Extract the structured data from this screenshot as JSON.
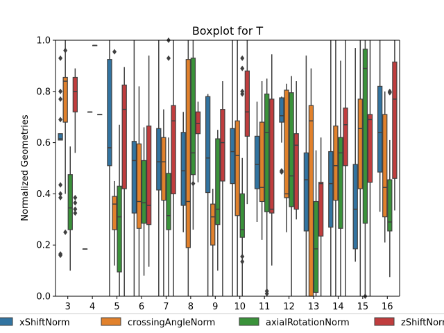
{
  "chart_data": {
    "type": "boxplot",
    "title": "Boxplot for T",
    "xlabel": "",
    "ylabel": "Normalized Geometries",
    "ylim": [
      0.0,
      1.0
    ],
    "yticks": [
      "0.0",
      "0.2",
      "0.4",
      "0.6",
      "0.8",
      "1.0"
    ],
    "categories": [
      "3",
      "4",
      "5",
      "6",
      "7",
      "8",
      "9",
      "10",
      "11",
      "12",
      "13",
      "14",
      "15",
      "16"
    ],
    "legend_position": "bottom",
    "series": [
      {
        "name": "xShiftNorm",
        "color": "#3274a1",
        "boxes": [
          {
            "q1": 0.61,
            "median": 0.615,
            "q3": 0.635,
            "wlo": 0.61,
            "whi": 0.635,
            "outliers": [
              0.93,
              0.8,
              0.77,
              0.69,
              0.435,
              0.4,
              0.385,
              0.165,
              0.16
            ]
          },
          {
            "q1": 0.185,
            "median": 0.185,
            "q3": 0.185,
            "wlo": 0.185,
            "whi": 0.185,
            "outliers": []
          },
          {
            "q1": 0.51,
            "median": 0.58,
            "q3": 0.925,
            "wlo": 0.0,
            "whi": 1.0,
            "outliers": []
          },
          {
            "q1": 0.325,
            "median": 0.53,
            "q3": 0.605,
            "wlo": 0.0,
            "whi": 1.0,
            "outliers": []
          },
          {
            "q1": 0.415,
            "median": 0.525,
            "q3": 0.655,
            "wlo": 0.0,
            "whi": 1.0,
            "outliers": []
          },
          {
            "q1": 0.355,
            "median": 0.49,
            "q3": 0.64,
            "wlo": 0.25,
            "whi": 0.72,
            "outliers": []
          },
          {
            "q1": 0.405,
            "median": 0.54,
            "q3": 0.78,
            "wlo": 0.0,
            "whi": 0.79,
            "outliers": []
          },
          {
            "q1": 0.44,
            "median": 0.565,
            "q3": 0.655,
            "wlo": 0.0,
            "whi": 1.0,
            "outliers": []
          },
          {
            "q1": 0.42,
            "median": 0.515,
            "q3": 0.625,
            "wlo": 0.29,
            "whi": 0.76,
            "outliers": []
          },
          {
            "q1": 0.68,
            "median": 0.705,
            "q3": 0.775,
            "wlo": 0.6,
            "whi": 0.78,
            "outliers": [
              0.49,
              0.485
            ]
          },
          {
            "q1": 0.255,
            "median": 0.455,
            "q3": 0.56,
            "wlo": 0.0,
            "whi": 0.94,
            "outliers": []
          },
          {
            "q1": 0.27,
            "median": 0.44,
            "q3": 0.565,
            "wlo": 0.0,
            "whi": 1.0,
            "outliers": []
          },
          {
            "q1": 0.185,
            "median": 0.34,
            "q3": 0.515,
            "wlo": 0.135,
            "whi": 0.97,
            "outliers": []
          },
          {
            "q1": 0.485,
            "median": 0.64,
            "q3": 0.82,
            "wlo": 0.33,
            "whi": 1.0,
            "outliers": []
          }
        ]
      },
      {
        "name": "crossingAngleNorm",
        "color": "#e1812c",
        "boxes": [
          {
            "q1": 0.68,
            "median": 0.84,
            "q3": 0.855,
            "wlo": 0.4,
            "whi": 1.0,
            "outliers": [
              0.96,
              0.25
            ]
          },
          {
            "q1": 0.72,
            "median": 0.72,
            "q3": 0.72,
            "wlo": 0.72,
            "whi": 0.72,
            "outliers": []
          },
          {
            "q1": 0.26,
            "median": 0.36,
            "q3": 0.39,
            "wlo": 0.12,
            "whi": 0.45,
            "outliers": [
              0.955
            ]
          },
          {
            "q1": 0.265,
            "median": 0.37,
            "q3": 0.595,
            "wlo": 0.0,
            "whi": 0.82,
            "outliers": []
          },
          {
            "q1": 0.375,
            "median": 0.525,
            "q3": 0.62,
            "wlo": 0.0,
            "whi": 0.73,
            "outliers": []
          },
          {
            "q1": 0.19,
            "median": 0.37,
            "q3": 0.925,
            "wlo": 0.0,
            "whi": 1.0,
            "outliers": []
          },
          {
            "q1": 0.2,
            "median": 0.31,
            "q3": 0.36,
            "wlo": 0.0,
            "whi": 0.42,
            "outliers": []
          },
          {
            "q1": 0.315,
            "median": 0.55,
            "q3": 0.685,
            "wlo": 0.0,
            "whi": 1.0,
            "outliers": []
          },
          {
            "q1": 0.37,
            "median": 0.425,
            "q3": 0.68,
            "wlo": 0.22,
            "whi": 0.84,
            "outliers": []
          },
          {
            "q1": 0.385,
            "median": 0.4,
            "q3": 0.805,
            "wlo": 0.25,
            "whi": 0.83,
            "outliers": []
          },
          {
            "q1": 0.0,
            "median": 0.685,
            "q3": 0.745,
            "wlo": 0.0,
            "whi": 0.89,
            "outliers": []
          },
          {
            "q1": 0.375,
            "median": 0.51,
            "q3": 0.665,
            "wlo": 0.0,
            "whi": 1.0,
            "outliers": []
          },
          {
            "q1": 0.42,
            "median": 0.655,
            "q3": 0.77,
            "wlo": 0.0,
            "whi": 1.0,
            "outliers": []
          },
          {
            "q1": 0.31,
            "median": 0.425,
            "q3": 0.71,
            "wlo": 0.21,
            "whi": 0.8,
            "outliers": []
          }
        ]
      },
      {
        "name": "axialRotationNorm",
        "color": "#3a923a",
        "boxes": [
          {
            "q1": 0.26,
            "median": 0.345,
            "q3": 0.475,
            "wlo": 0.1,
            "whi": 0.585,
            "outliers": []
          },
          {
            "q1": 0.98,
            "median": 0.98,
            "q3": 0.98,
            "wlo": 0.98,
            "whi": 0.98,
            "outliers": []
          },
          {
            "q1": 0.095,
            "median": 0.31,
            "q3": 0.43,
            "wlo": 0.0,
            "whi": 0.67,
            "outliers": []
          },
          {
            "q1": 0.285,
            "median": 0.365,
            "q3": 0.53,
            "wlo": 0.08,
            "whi": 0.66,
            "outliers": []
          },
          {
            "q1": 0.26,
            "median": 0.315,
            "q3": 0.48,
            "wlo": 0.0,
            "whi": 0.62,
            "outliers": [
              1.0,
              0.93
            ]
          },
          {
            "q1": 0.475,
            "median": 0.56,
            "q3": 0.93,
            "wlo": 0.26,
            "whi": 1.0,
            "outliers": [
              0.44
            ]
          },
          {
            "q1": 0.28,
            "median": 0.34,
            "q3": 0.615,
            "wlo": 0.1,
            "whi": 0.65,
            "outliers": []
          },
          {
            "q1": 0.23,
            "median": 0.26,
            "q3": 0.4,
            "wlo": 0.0,
            "whi": 0.54,
            "outliers": [
              0.93,
              0.89,
              0.8,
              0.79,
              0.155,
              0.135
            ]
          },
          {
            "q1": 0.33,
            "median": 0.64,
            "q3": 0.79,
            "wlo": 0.0,
            "whi": 0.85,
            "outliers": [
              0.02,
              0.01
            ]
          },
          {
            "q1": 0.35,
            "median": 0.47,
            "q3": 0.795,
            "wlo": 0.0,
            "whi": 0.86,
            "outliers": []
          },
          {
            "q1": 0.015,
            "median": 0.185,
            "q3": 0.37,
            "wlo": 0.0,
            "whi": 0.57,
            "outliers": []
          },
          {
            "q1": 0.265,
            "median": 0.56,
            "q3": 0.62,
            "wlo": 0.0,
            "whi": 0.92,
            "outliers": []
          },
          {
            "q1": 0.285,
            "median": 0.89,
            "q3": 0.965,
            "wlo": 0.0,
            "whi": 1.0,
            "outliers": [
              0.0
            ]
          },
          {
            "q1": 0.255,
            "median": 0.29,
            "q3": 0.455,
            "wlo": 0.075,
            "whi": 0.61,
            "outliers": [
              0.8,
              0.795
            ]
          }
        ]
      },
      {
        "name": "zShiftNorm",
        "color": "#c03d3e",
        "boxes": [
          {
            "q1": 0.72,
            "median": 0.8,
            "q3": 0.855,
            "wlo": 0.56,
            "whi": 0.89,
            "outliers": [
              0.385,
              0.365,
              0.34,
              0.325
            ]
          },
          {
            "q1": 0.71,
            "median": 0.71,
            "q3": 0.71,
            "wlo": 0.71,
            "whi": 0.71,
            "outliers": []
          },
          {
            "q1": 0.42,
            "median": 0.73,
            "q3": 0.825,
            "wlo": 0.0,
            "whi": 0.895,
            "outliers": []
          },
          {
            "q1": 0.28,
            "median": 0.355,
            "q3": 0.665,
            "wlo": 0.115,
            "whi": 0.94,
            "outliers": []
          },
          {
            "q1": 0.4,
            "median": 0.685,
            "q3": 0.745,
            "wlo": 0.0,
            "whi": 1.0,
            "outliers": []
          },
          {
            "q1": 0.635,
            "median": 0.675,
            "q3": 0.72,
            "wlo": 0.445,
            "whi": 0.76,
            "outliers": []
          },
          {
            "q1": 0.45,
            "median": 0.6,
            "q3": 0.73,
            "wlo": 0.0,
            "whi": 0.84,
            "outliers": []
          },
          {
            "q1": 0.625,
            "median": 0.72,
            "q3": 0.88,
            "wlo": 0.36,
            "whi": 1.0,
            "outliers": []
          },
          {
            "q1": 0.325,
            "median": 0.34,
            "q3": 0.77,
            "wlo": 0.12,
            "whi": 0.945,
            "outliers": []
          },
          {
            "q1": 0.34,
            "median": 0.59,
            "q3": 0.635,
            "wlo": 0.3,
            "whi": 0.84,
            "outliers": []
          },
          {
            "q1": 0.235,
            "median": 0.44,
            "q3": 0.445,
            "wlo": 0.0,
            "whi": 0.62,
            "outliers": []
          },
          {
            "q1": 0.51,
            "median": 0.67,
            "q3": 0.735,
            "wlo": 0.0,
            "whi": 1.0,
            "outliers": []
          },
          {
            "q1": 0.445,
            "median": 0.69,
            "q3": 0.71,
            "wlo": 0.0,
            "whi": 1.0,
            "outliers": []
          },
          {
            "q1": 0.46,
            "median": 0.77,
            "q3": 0.915,
            "wlo": 0.335,
            "whi": 1.0,
            "outliers": []
          }
        ]
      }
    ]
  }
}
